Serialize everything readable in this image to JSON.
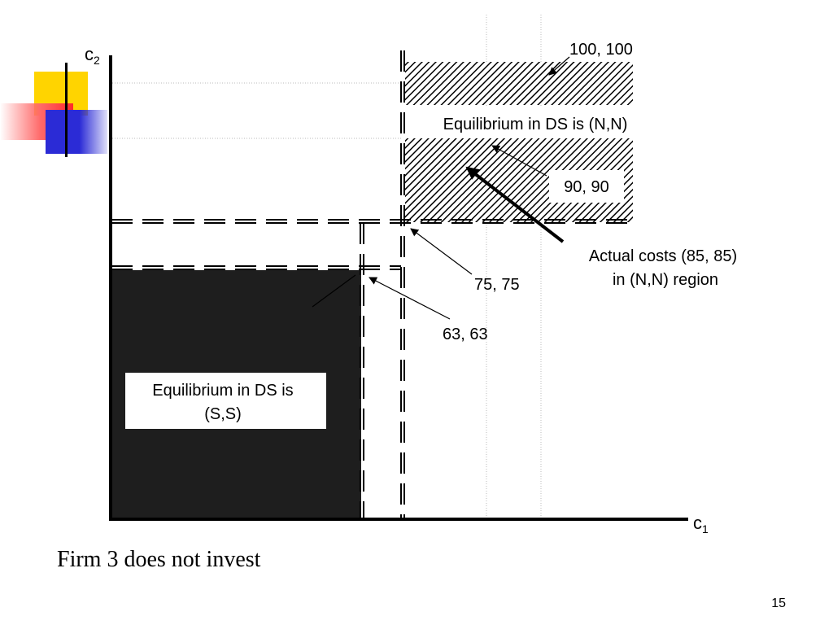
{
  "axes": {
    "y_label": "c",
    "y_subscript": "2",
    "x_label": "c",
    "x_subscript": "1"
  },
  "regions": {
    "ss_label_line1": "Equilibrium in DS is",
    "ss_label_line2": "(S,S)",
    "nn_label": "Equilibrium in DS is (N,N)"
  },
  "annotations": {
    "point_100": "100, 100",
    "point_90": "90, 90",
    "point_75": "75, 75",
    "point_63": "63, 63",
    "actual_line1": "Actual costs (85, 85)",
    "actual_line2": "in (N,N) region"
  },
  "footer": "Firm 3 does not invest",
  "page_number": "15",
  "colors": {
    "ss_fill": "#1e1e1e",
    "hatch": "#000000",
    "deco_yellow": "#ffd400",
    "deco_red": "#ff2a2a",
    "deco_blue": "#2b2bd6"
  }
}
